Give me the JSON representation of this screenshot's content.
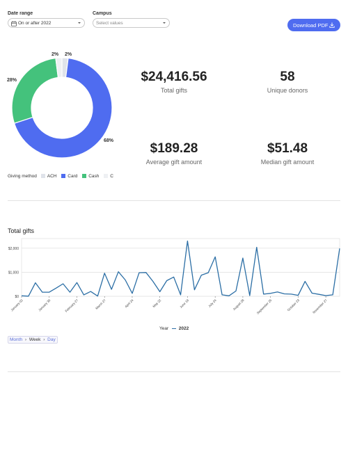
{
  "filters": {
    "date_range": {
      "label": "Date range",
      "value": "On or after 2022"
    },
    "campus": {
      "label": "Campus",
      "placeholder": "Select values"
    }
  },
  "toolbar": {
    "download_label": "Download PDF"
  },
  "kpis": {
    "total_gifts": {
      "value": "$24,416.56",
      "label": "Total gifts"
    },
    "unique_donors": {
      "value": "58",
      "label": "Unique donors"
    },
    "average_gift": {
      "value": "$189.28",
      "label": "Average gift amount"
    },
    "median_gift": {
      "value": "$51.48",
      "label": "Median gift amount"
    }
  },
  "colors": {
    "ach": "#dfe3ea",
    "card": "#4f6cf0",
    "cash": "#44c27c",
    "check": "#eef0f3",
    "line": "#2b6ea5",
    "accent": "#4f6cf0"
  },
  "donut": {
    "legend_title": "Giving method",
    "labels": {
      "top_left": "2%",
      "top_right": "2%",
      "left": "28%",
      "right": "68%"
    },
    "legend": [
      "ACH",
      "Card",
      "Cash",
      "C"
    ]
  },
  "line_chart": {
    "title": "Total gifts",
    "legend_title": "Year",
    "series_name": "2022"
  },
  "breadcrumb": {
    "month": "Month",
    "week": "Week",
    "day": "Day"
  },
  "chart_data": [
    {
      "type": "pie",
      "legend_title": "Giving method",
      "slices": [
        {
          "name": "ACH",
          "value": 2
        },
        {
          "name": "Card",
          "value": 68
        },
        {
          "name": "Cash",
          "value": 28
        },
        {
          "name": "C",
          "value": 2
        }
      ]
    },
    {
      "type": "line",
      "title": "Total gifts",
      "legend_title": "Year",
      "series": [
        {
          "name": "2022",
          "values": [
            20,
            5,
            560,
            170,
            170,
            340,
            520,
            170,
            570,
            60,
            200,
            10,
            960,
            290,
            1020,
            680,
            120,
            980,
            990,
            620,
            190,
            650,
            800,
            60,
            2300,
            270,
            880,
            980,
            1640,
            60,
            20,
            220,
            1590,
            30,
            2040,
            90,
            120,
            180,
            100,
            90,
            40,
            620,
            130,
            80,
            30,
            60,
            1990
          ]
        }
      ],
      "xticks": [
        "January 02",
        "January 30",
        "February 27",
        "March 27",
        "April 24",
        "May 22",
        "June 19",
        "July 24",
        "August 28",
        "September 25",
        "October 23",
        "November 27"
      ],
      "yticks": [
        "$0",
        "$1,000",
        "$2,000"
      ],
      "ylim": [
        0,
        2400
      ]
    }
  ]
}
